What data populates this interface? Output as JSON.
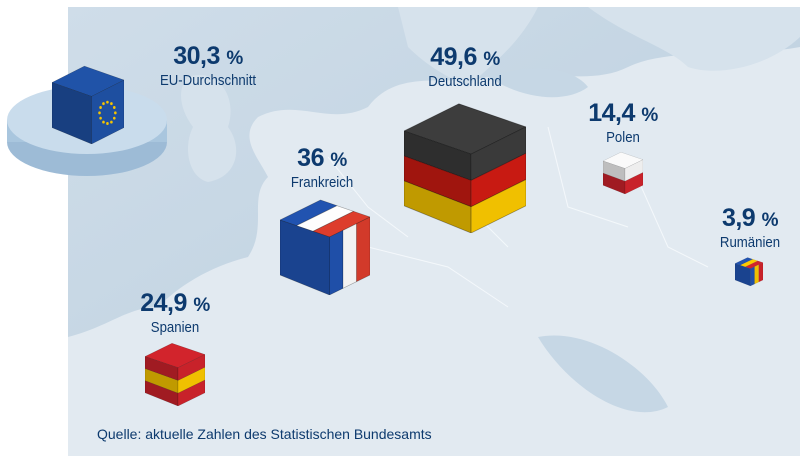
{
  "items": [
    {
      "id": "eu",
      "value": "30,3",
      "unit": "%",
      "name": "EU-Durchschnitt"
    },
    {
      "id": "fr",
      "value": "36",
      "unit": "%",
      "name": "Frankreich"
    },
    {
      "id": "de",
      "value": "49,6",
      "unit": "%",
      "name": "Deutschland"
    },
    {
      "id": "pl",
      "value": "14,4",
      "unit": "%",
      "name": "Polen"
    },
    {
      "id": "ro",
      "value": "3,9",
      "unit": "%",
      "name": "Rumänien"
    },
    {
      "id": "es",
      "value": "24,9",
      "unit": "%",
      "name": "Spanien"
    }
  ],
  "source": "Quelle: aktuelle Zahlen des Statistischen Bundesamts",
  "colors": {
    "text": "#0d3a6e",
    "sea": "#c3d4e2",
    "land": "#e4ecf2"
  },
  "flags": {
    "eu": {
      "dir": "h",
      "stripes": [
        "#1e4fa0"
      ]
    },
    "fr": {
      "dir": "v",
      "stripes": [
        "#1f4fa8",
        "#f2f2f2",
        "#d23a2a"
      ]
    },
    "de": {
      "dir": "h",
      "stripes": [
        "#3a3a3a",
        "#c81a12",
        "#f0c000"
      ]
    },
    "pl": {
      "dir": "h",
      "stripes": [
        "#eeeeee",
        "#c8222a"
      ]
    },
    "ro": {
      "dir": "v",
      "stripes": [
        "#1f4fa8",
        "#f0c000",
        "#c8222a"
      ]
    },
    "es": {
      "dir": "h",
      "stripes": [
        "#c8222a",
        "#f0c000",
        "#c8222a"
      ]
    }
  }
}
